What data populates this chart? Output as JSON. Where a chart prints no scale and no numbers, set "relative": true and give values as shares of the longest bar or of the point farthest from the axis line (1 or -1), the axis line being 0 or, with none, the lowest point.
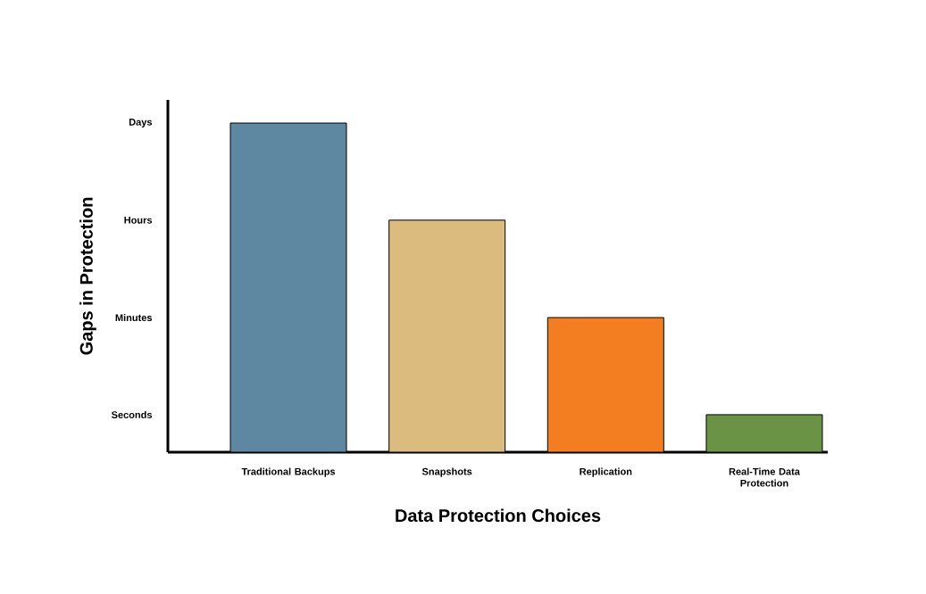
{
  "chart_data": {
    "type": "bar",
    "xlabel": "Data Protection Choices",
    "ylabel": "Gaps in Protection",
    "relative": true,
    "categories": [
      "Traditional Backups",
      "Snapshots",
      "Replication",
      "Real-Time Data Protection"
    ],
    "values": [
      1,
      0.705,
      0.409,
      0.114
    ],
    "colors": [
      "#5e87a2",
      "#dbbc7e",
      "#f37e22",
      "#6a9346"
    ],
    "annotations": [
      "Days",
      "Hours",
      "Minutes",
      "Seconds"
    ]
  }
}
